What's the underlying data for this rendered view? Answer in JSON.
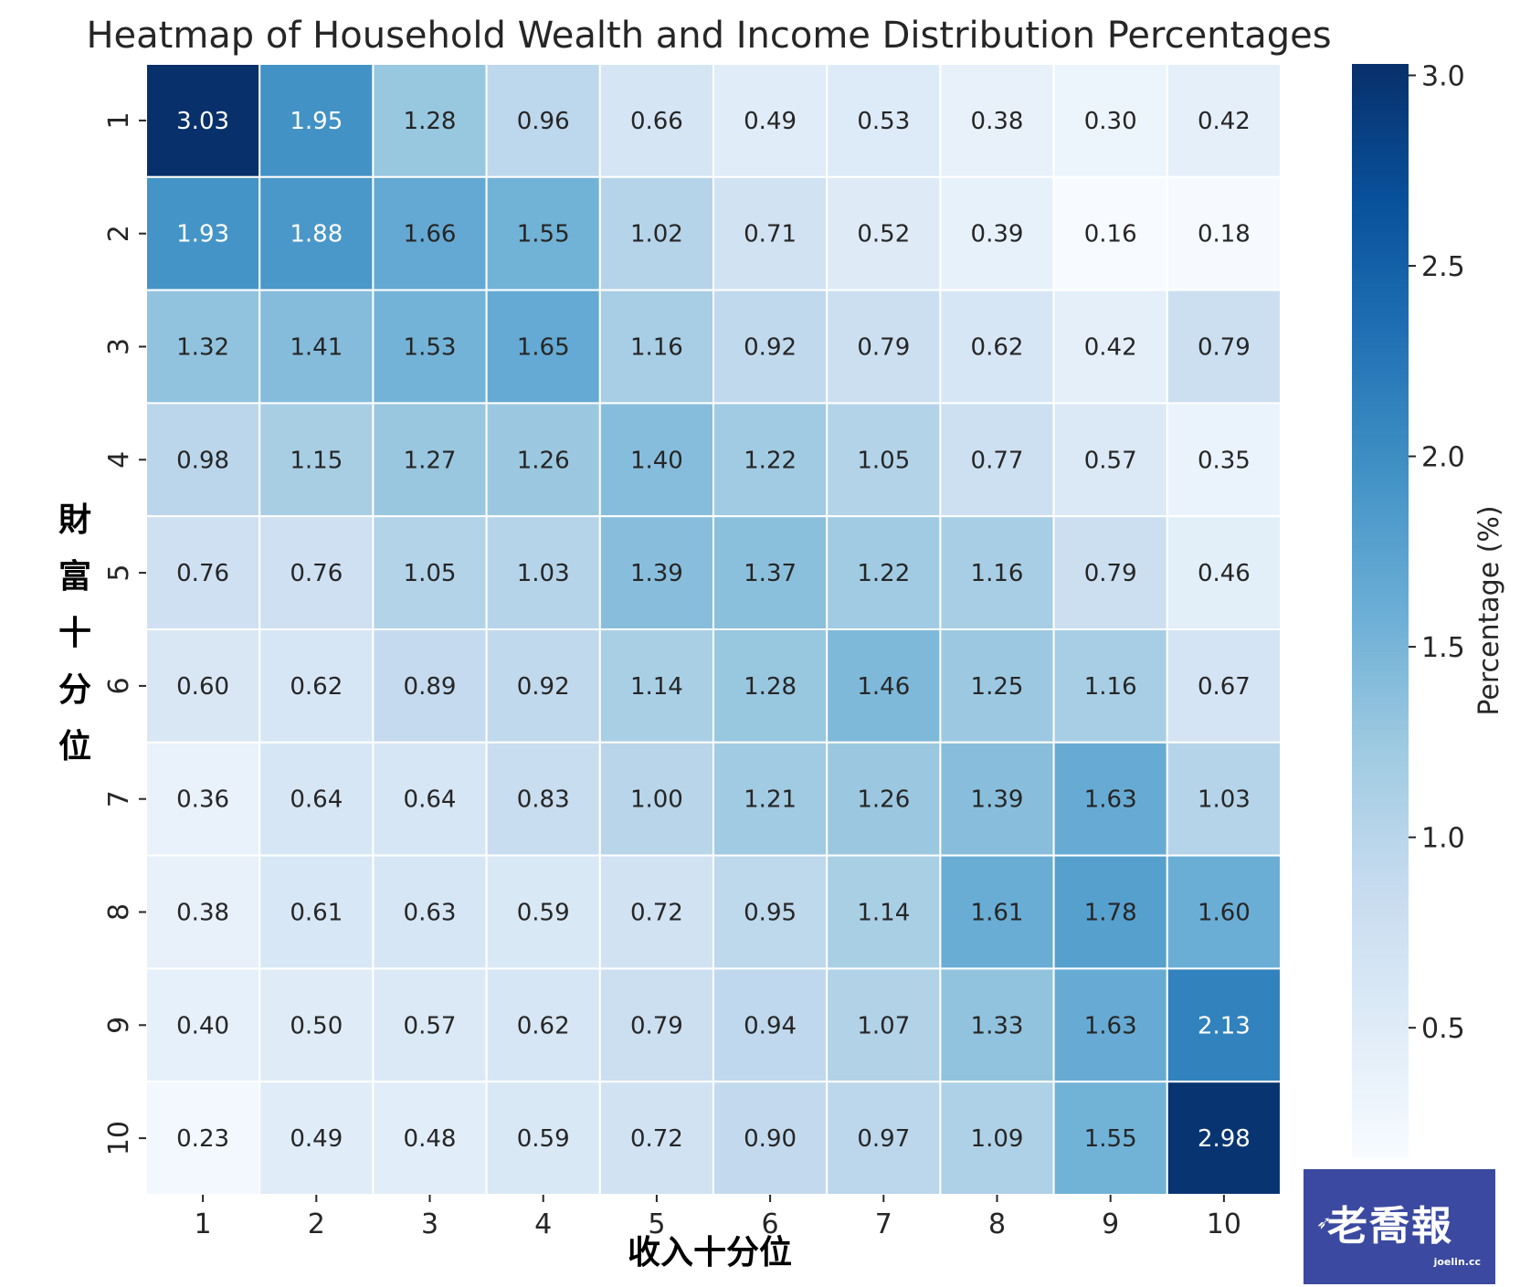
{
  "chart_data": {
    "type": "heatmap",
    "title": "Heatmap of Household Wealth and Income Distribution Percentages",
    "xlabel": "收入十分位",
    "ylabel": "財富十分位",
    "x_categories": [
      "1",
      "2",
      "3",
      "4",
      "5",
      "6",
      "7",
      "8",
      "9",
      "10"
    ],
    "y_categories": [
      "1",
      "2",
      "3",
      "4",
      "5",
      "6",
      "7",
      "8",
      "9",
      "10"
    ],
    "values": [
      [
        3.03,
        1.95,
        1.28,
        0.96,
        0.66,
        0.49,
        0.53,
        0.38,
        0.3,
        0.42
      ],
      [
        1.93,
        1.88,
        1.66,
        1.55,
        1.02,
        0.71,
        0.52,
        0.39,
        0.16,
        0.18
      ],
      [
        1.32,
        1.41,
        1.53,
        1.65,
        1.16,
        0.92,
        0.79,
        0.62,
        0.42,
        0.79
      ],
      [
        0.98,
        1.15,
        1.27,
        1.26,
        1.4,
        1.22,
        1.05,
        0.77,
        0.57,
        0.35
      ],
      [
        0.76,
        0.76,
        1.05,
        1.03,
        1.39,
        1.37,
        1.22,
        1.16,
        0.79,
        0.46
      ],
      [
        0.6,
        0.62,
        0.89,
        0.92,
        1.14,
        1.28,
        1.46,
        1.25,
        1.16,
        0.67
      ],
      [
        0.36,
        0.64,
        0.64,
        0.83,
        1.0,
        1.21,
        1.26,
        1.39,
        1.63,
        1.03
      ],
      [
        0.38,
        0.61,
        0.63,
        0.59,
        0.72,
        0.95,
        1.14,
        1.61,
        1.78,
        1.6
      ],
      [
        0.4,
        0.5,
        0.57,
        0.62,
        0.79,
        0.94,
        1.07,
        1.33,
        1.63,
        2.13
      ],
      [
        0.23,
        0.49,
        0.48,
        0.59,
        0.72,
        0.9,
        0.97,
        1.09,
        1.55,
        2.98
      ]
    ],
    "colorbar": {
      "label": "Percentage (%)",
      "range": [
        0.16,
        3.03
      ],
      "ticks": [
        0.5,
        1.0,
        1.5,
        2.0,
        2.5,
        3.0
      ],
      "tick_labels": [
        "0.5",
        "1.0",
        "1.5",
        "2.0",
        "2.5",
        "3.0"
      ],
      "colormap": "Blues"
    },
    "grid": true
  },
  "watermark": {
    "text": "老喬報",
    "subtext": "joelin.cc",
    "background": "#3b4aa0"
  }
}
